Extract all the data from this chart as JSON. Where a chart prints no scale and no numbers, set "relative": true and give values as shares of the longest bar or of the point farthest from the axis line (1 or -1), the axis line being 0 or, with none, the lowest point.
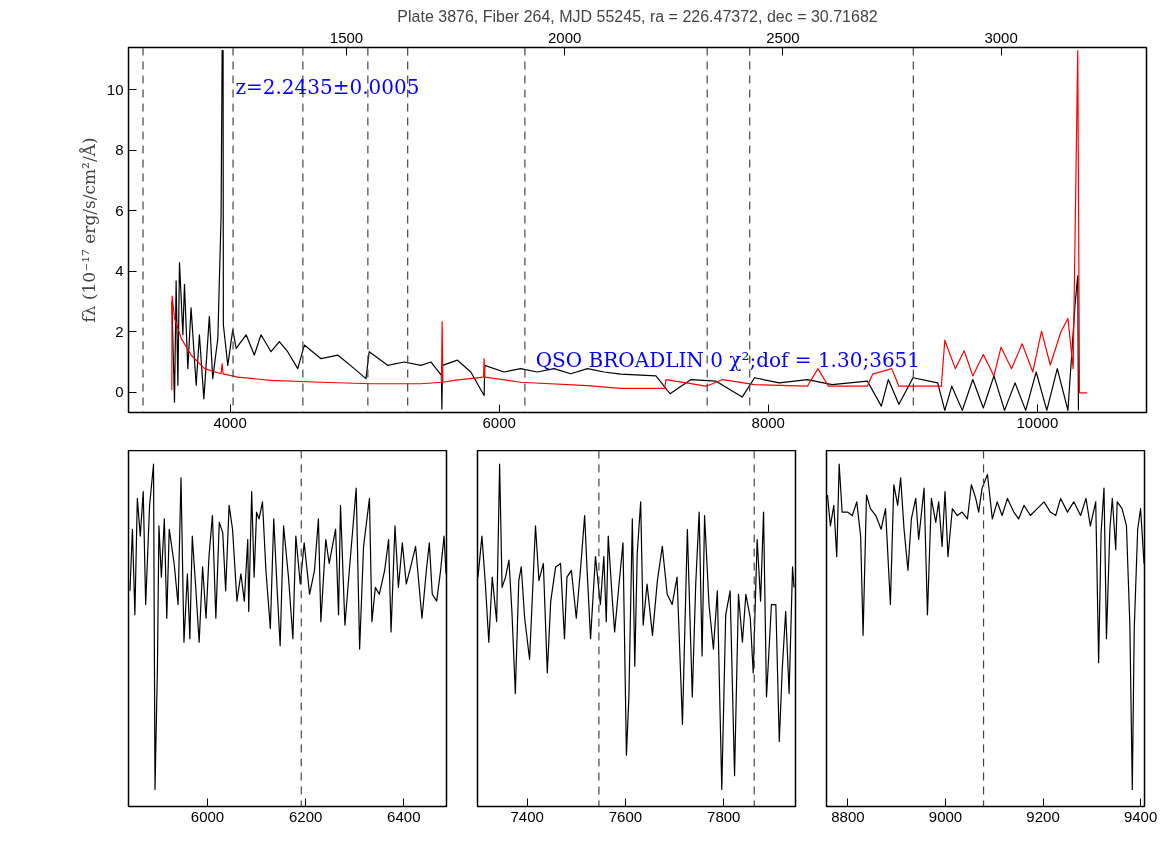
{
  "chart_data": [
    {
      "type": "line",
      "title": "Plate 3876, Fiber 264, MJD 55245, ra = 226.47372, dec = 30.71682",
      "ylabel": "fλ (10⁻¹⁷ erg/s/cm²/Å)",
      "annotations": [
        "z=2.2435±0.0005",
        "QSO BROADLIN 0 χ²;dof =   1.30;3651"
      ],
      "xlim": [
        3245,
        10811
      ],
      "xticks": [
        4000,
        6000,
        8000,
        10000
      ],
      "x2lim": [
        1000.5,
        3333.2
      ],
      "x2ticks": [
        1500,
        2000,
        2500,
        3000
      ],
      "ylim": [
        -0.67,
        11.4
      ],
      "yticks": [
        0,
        2,
        4,
        6,
        8,
        10
      ],
      "ref_lines": [
        {
          "axis": "x",
          "value": 3353,
          "line_style": "dashed",
          "color": "#444444"
        },
        {
          "axis": "x",
          "value": 4022,
          "line_style": "dashed",
          "color": "#444444"
        },
        {
          "axis": "x",
          "value": 4541,
          "line_style": "dashed",
          "color": "#444444"
        },
        {
          "axis": "x",
          "value": 5024,
          "line_style": "dashed",
          "color": "#444444"
        },
        {
          "axis": "x",
          "value": 5320,
          "line_style": "dashed",
          "color": "#444444"
        },
        {
          "axis": "x",
          "value": 6191,
          "line_style": "dashed",
          "color": "#444444"
        },
        {
          "axis": "x",
          "value": 7546,
          "line_style": "dashed",
          "color": "#444444"
        },
        {
          "axis": "x",
          "value": 7862,
          "line_style": "dashed",
          "color": "#444444"
        },
        {
          "axis": "x",
          "value": 9078,
          "line_style": "dashed",
          "color": "#444444"
        }
      ],
      "series": [
        {
          "color": "#000000",
          "x": [
            3567,
            3587,
            3599,
            3612,
            3624,
            3649,
            3661,
            3686,
            3710,
            3748,
            3772,
            3805,
            3846,
            3871,
            3909,
            3933,
            3941,
            3948,
            3950,
            3983,
            4020,
            4045,
            4119,
            4180,
            4230,
            4304,
            4366,
            4428,
            4503,
            4552,
            4676,
            4800,
            4923,
            5010,
            5034,
            5171,
            5294,
            5418,
            5492,
            5571,
            5574,
            5579,
            5690,
            5789,
            5888,
            5893,
            6036,
            6160,
            6284,
            6408,
            6532,
            6656,
            6779,
            6903,
            7165,
            7270,
            7426,
            7609,
            7806,
            7898,
            8081,
            8291,
            8474,
            8736,
            8840,
            8892,
            8971,
            9076,
            9259,
            9312,
            9364,
            9442,
            9520,
            9598,
            9677,
            9756,
            9834,
            9913,
            9991,
            10070,
            10148,
            10227,
            10280,
            10300,
            10305
          ],
          "values": [
            3.0,
            -0.33,
            3.68,
            0.23,
            4.29,
            1.9,
            3.57,
            0.78,
            2.79,
            0.23,
            1.9,
            -0.22,
            2.51,
            0.45,
            1.78,
            5.8,
            11.3,
            11.3,
            2.23,
            0.89,
            2.07,
            1.45,
            1.9,
            1.23,
            1.9,
            1.34,
            1.67,
            1.34,
            0.78,
            1.56,
            1.11,
            1.23,
            0.78,
            0.45,
            1.34,
            0.89,
            1.0,
            0.89,
            1.0,
            0.56,
            -0.56,
            0.89,
            1.06,
            0.67,
            -0.11,
            0.89,
            0.67,
            0.78,
            0.67,
            0.78,
            0.61,
            0.78,
            0.67,
            0.6,
            0.54,
            -0.05,
            0.42,
            0.37,
            -0.16,
            0.48,
            0.31,
            0.42,
            0.25,
            0.37,
            -0.46,
            0.42,
            -0.4,
            0.48,
            0.31,
            -0.6,
            0.2,
            -0.6,
            0.42,
            -0.52,
            0.54,
            -0.6,
            0.31,
            -0.6,
            0.67,
            -0.6,
            0.78,
            -0.6,
            2.9,
            3.85,
            -0.6
          ]
        },
        {
          "color": "#ff0000",
          "x": [
            3567,
            3569,
            3587,
            3637,
            3710,
            3810,
            3933,
            3941,
            3948,
            4057,
            4304,
            4676,
            5047,
            5418,
            5571,
            5576,
            5581,
            5666,
            5884,
            5888,
            5893,
            6160,
            6656,
            6903,
            7230,
            7240,
            7538,
            7662,
            7898,
            8291,
            8369,
            8447,
            8736,
            8776,
            8918,
            8971,
            9286,
            9312,
            9390,
            9456,
            9520,
            9598,
            9677,
            9730,
            9808,
            9887,
            9966,
            10031,
            10096,
            10175,
            10227,
            10266,
            10300,
            10313,
            10370
          ],
          "values": [
            0.07,
            3.18,
            2.45,
            1.78,
            1.23,
            0.78,
            0.61,
            0.95,
            0.61,
            0.5,
            0.39,
            0.33,
            0.28,
            0.28,
            0.33,
            2.34,
            0.33,
            0.39,
            0.5,
            1.11,
            0.5,
            0.33,
            0.22,
            0.13,
            0.13,
            0.42,
            0.2,
            0.42,
            0.25,
            0.2,
            0.78,
            0.2,
            0.2,
            0.6,
            0.78,
            0.2,
            0.2,
            1.72,
            0.78,
            1.37,
            0.54,
            1.25,
            0.54,
            1.49,
            0.78,
            1.6,
            0.67,
            2.02,
            0.9,
            2.0,
            2.44,
            0.78,
            11.3,
            -0.02,
            -0.02
          ]
        }
      ]
    },
    {
      "type": "line",
      "relative": true,
      "tick_labels": "x",
      "xlim": [
        5839,
        6487
      ],
      "xticks": [
        6000,
        6200,
        6400
      ],
      "ref_lines": [
        {
          "axis": "x",
          "value": 6191,
          "line_style": "dashed",
          "color": "#444444"
        }
      ],
      "series": [
        {
          "color": "#000000",
          "x": [
            5842,
            5847,
            5852,
            5857,
            5863,
            5869,
            5874,
            5882,
            5890,
            5893,
            5898,
            5901,
            5906,
            5912,
            5917,
            5922,
            5932,
            5940,
            5946,
            5952,
            5959,
            5964,
            5969,
            5976,
            5983,
            5990,
            5997,
            6003,
            6010,
            6017,
            6024,
            6031,
            6037,
            6044,
            6051,
            6060,
            6068,
            6075,
            6082,
            6084,
            6090,
            6095,
            6100,
            6105,
            6112,
            6119,
            6128,
            6135,
            6142,
            6148,
            6155,
            6165,
            6174,
            6180,
            6189,
            6197,
            6208,
            6218,
            6226,
            6231,
            6241,
            6248,
            6261,
            6267,
            6271,
            6280,
            6289,
            6303,
            6310,
            6318,
            6330,
            6335,
            6342,
            6350,
            6361,
            6369,
            6374,
            6382,
            6389,
            6397,
            6405,
            6414,
            6424,
            6437,
            6446,
            6452,
            6458,
            6467,
            6475,
            6482,
            6486
          ],
          "values": [
            0.63,
            0.81,
            0.56,
            0.9,
            0.79,
            0.92,
            0.59,
            0.88,
            1.0,
            0.05,
            0.41,
            0.82,
            0.67,
            0.84,
            0.55,
            0.81,
            0.71,
            0.59,
            0.96,
            0.48,
            0.68,
            0.49,
            0.79,
            0.64,
            0.48,
            0.7,
            0.55,
            0.73,
            0.85,
            0.55,
            0.83,
            0.8,
            0.63,
            0.88,
            0.81,
            0.6,
            0.68,
            0.6,
            0.78,
            0.57,
            0.92,
            0.67,
            0.86,
            0.84,
            0.89,
            0.69,
            0.52,
            0.84,
            0.63,
            0.47,
            0.82,
            0.67,
            0.49,
            0.79,
            0.65,
            0.77,
            0.62,
            0.69,
            0.84,
            0.54,
            0.78,
            0.71,
            0.81,
            0.56,
            0.88,
            0.53,
            0.69,
            0.93,
            0.46,
            0.76,
            0.9,
            0.54,
            0.64,
            0.62,
            0.69,
            0.78,
            0.51,
            0.82,
            0.64,
            0.77,
            0.65,
            0.7,
            0.76,
            0.55,
            0.69,
            0.77,
            0.62,
            0.6,
            0.69,
            0.79,
            0.68
          ]
        }
      ]
    },
    {
      "type": "line",
      "relative": true,
      "tick_labels": "x",
      "xlim": [
        7299,
        7946
      ],
      "xticks": [
        7400,
        7600,
        7800
      ],
      "ref_lines": [
        {
          "axis": "x",
          "value": 7546,
          "line_style": "dashed",
          "color": "#444444"
        },
        {
          "axis": "x",
          "value": 7862,
          "line_style": "dashed",
          "color": "#444444"
        }
      ],
      "series": [
        {
          "color": "#000000",
          "x": [
            7300,
            7308,
            7315,
            7322,
            7329,
            7338,
            7344,
            7349,
            7356,
            7363,
            7369,
            7376,
            7383,
            7388,
            7395,
            7405,
            7417,
            7424,
            7433,
            7441,
            7448,
            7458,
            7468,
            7476,
            7481,
            7490,
            7500,
            7509,
            7517,
            7522,
            7529,
            7539,
            7549,
            7556,
            7561,
            7565,
            7573,
            7578,
            7587,
            7595,
            7602,
            7607,
            7614,
            7619,
            7624,
            7631,
            7636,
            7644,
            7655,
            7665,
            7675,
            7685,
            7695,
            7705,
            7716,
            7726,
            7736,
            7743,
            7750,
            7756,
            7761,
            7770,
            7779,
            7787,
            7796,
            7804,
            7813,
            7822,
            7830,
            7838,
            7845,
            7854,
            7860,
            7868,
            7875,
            7881,
            7887,
            7897,
            7906,
            7913,
            7919,
            7926,
            7933,
            7940,
            7943
          ],
          "values": [
            0.67,
            0.79,
            0.65,
            0.48,
            0.67,
            0.54,
            1.0,
            0.64,
            0.67,
            0.72,
            0.57,
            0.33,
            0.66,
            0.7,
            0.55,
            0.43,
            0.82,
            0.66,
            0.71,
            0.39,
            0.6,
            0.7,
            0.71,
            0.49,
            0.67,
            0.69,
            0.55,
            0.7,
            0.85,
            0.69,
            0.49,
            0.73,
            0.59,
            0.73,
            0.54,
            0.79,
            0.61,
            0.51,
            0.65,
            0.77,
            0.15,
            0.32,
            0.84,
            0.41,
            0.74,
            0.89,
            0.53,
            0.65,
            0.5,
            0.66,
            0.76,
            0.62,
            0.59,
            0.67,
            0.24,
            0.81,
            0.32,
            0.65,
            0.86,
            0.44,
            0.85,
            0.59,
            0.46,
            0.63,
            0.05,
            0.56,
            0.63,
            0.09,
            0.62,
            0.48,
            0.62,
            0.55,
            0.39,
            0.78,
            0.6,
            0.86,
            0.32,
            0.59,
            0.59,
            0.19,
            0.4,
            0.57,
            0.33,
            0.7,
            0.64
          ]
        }
      ]
    },
    {
      "type": "line",
      "relative": true,
      "tick_labels": "x",
      "xlim": [
        8756,
        9408
      ],
      "xticks": [
        8800,
        9000,
        9200,
        9400
      ],
      "ref_lines": [
        {
          "axis": "x",
          "value": 9078,
          "line_style": "dashed",
          "color": "#444444"
        }
      ],
      "series": [
        {
          "color": "#000000",
          "x": [
            8758,
            8764,
            8771,
            8777,
            8782,
            8788,
            8799,
            8809,
            8818,
            8826,
            8831,
            8838,
            8846,
            8857,
            8868,
            8877,
            8887,
            8894,
            8902,
            8908,
            8915,
            8923,
            8930,
            8939,
            8945,
            8956,
            8963,
            8971,
            8980,
            8986,
            8993,
            8999,
            9005,
            9014,
            9024,
            9034,
            9045,
            9053,
            9062,
            9068,
            9075,
            9086,
            9096,
            9106,
            9116,
            9127,
            9140,
            9150,
            9161,
            9174,
            9188,
            9202,
            9215,
            9226,
            9236,
            9250,
            9263,
            9277,
            9288,
            9297,
            9308,
            9314,
            9319,
            9325,
            9330,
            9337,
            9342,
            9349,
            9352,
            9362,
            9371,
            9378,
            9383,
            9387,
            9394,
            9400,
            9407
          ],
          "values": [
            0.91,
            0.82,
            0.88,
            0.73,
            1.0,
            0.86,
            0.86,
            0.85,
            0.89,
            0.79,
            0.5,
            0.91,
            0.87,
            0.85,
            0.81,
            0.87,
            0.59,
            0.94,
            0.88,
            0.96,
            0.81,
            0.69,
            0.84,
            0.9,
            0.78,
            0.93,
            0.56,
            0.9,
            0.83,
            0.89,
            0.76,
            0.92,
            0.73,
            0.87,
            0.85,
            0.86,
            0.84,
            0.94,
            0.9,
            0.86,
            0.93,
            0.97,
            0.84,
            0.89,
            0.85,
            0.9,
            0.86,
            0.84,
            0.88,
            0.85,
            0.87,
            0.89,
            0.86,
            0.85,
            0.9,
            0.86,
            0.89,
            0.85,
            0.9,
            0.82,
            0.89,
            0.42,
            0.8,
            0.93,
            0.49,
            0.81,
            0.9,
            0.75,
            0.89,
            0.87,
            0.82,
            0.53,
            0.05,
            0.52,
            0.81,
            0.87,
            0.71
          ]
        }
      ]
    }
  ]
}
